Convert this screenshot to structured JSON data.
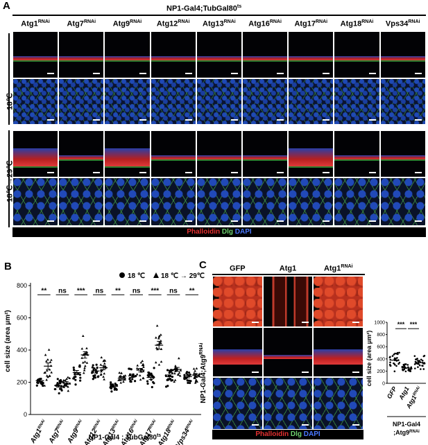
{
  "panelA": {
    "letter": "A",
    "genotype": "NP1-Gal4;TubGal80",
    "genotype_sup": "ts",
    "columns": [
      {
        "name": "Atg1",
        "sup": "RNAi"
      },
      {
        "name": "Atg7",
        "sup": "RNAi"
      },
      {
        "name": "Atg9",
        "sup": "RNAi"
      },
      {
        "name": "Atg12",
        "sup": "RNAi"
      },
      {
        "name": "Atg13",
        "sup": "RNAi"
      },
      {
        "name": "Atg16",
        "sup": "RNAi"
      },
      {
        "name": "Atg17",
        "sup": "RNAi"
      },
      {
        "name": "Atg18",
        "sup": "RNAi"
      },
      {
        "name": "Vps34",
        "sup": "RNAi"
      }
    ],
    "row_label_1": "18℃",
    "row_label_2": "18℃→29℃",
    "stain_labels": {
      "phalloidin": "Phalloidin",
      "dlg": "Dlg",
      "dapi": "DAPI"
    }
  },
  "panelB": {
    "letter": "B",
    "legend_circle": "18 ℃",
    "legend_triangle": "18 ℃ → 29℃",
    "xlabel": "NP1-Gal4 ; TubGal80",
    "xlabel_sup": "ts",
    "ylabel": "cell size (area μm²)",
    "significance": [
      "**",
      "ns",
      "***",
      "ns",
      "**",
      "ns",
      "***",
      "ns",
      "**"
    ]
  },
  "panelC": {
    "letter": "C",
    "columns": [
      "GFP",
      "Atg1",
      "Atg1"
    ],
    "column_sups": [
      "",
      "",
      "RNAi"
    ],
    "side_label": "NP1-Gal4;Atg9",
    "side_label_sup": "RNAi",
    "stain_labels": {
      "phalloidin": "Phalloidin",
      "dlg": "Dlg",
      "dapi": "DAPI"
    },
    "bottom_label_1": "NP1-Gal4",
    "bottom_label_2": ";Atg9",
    "bottom_label_2_sup": "RNAi",
    "inset_ylabel": "cell size (area μm²)",
    "inset_significance": [
      "***",
      "***"
    ]
  },
  "chart_data": [
    {
      "type": "scatter",
      "title": "",
      "xlabel": "NP1-Gal4 ; TubGal80ts",
      "ylabel": "cell size (area μm²)",
      "ylim": [
        0,
        800
      ],
      "yticks": [
        0,
        200,
        400,
        600,
        800
      ],
      "categories": [
        "Atg1RNAi",
        "Atg7RNAi",
        "Atg9RNAi",
        "Atg12RNAi",
        "Atg13RNAi",
        "Atg16RNAi",
        "Atg17RNAi",
        "Atg18RNAi",
        "Vps34RNAi"
      ],
      "series": [
        {
          "name": "18 ℃",
          "marker": "circle",
          "means": [
            210,
            180,
            260,
            270,
            175,
            240,
            230,
            235,
            235
          ],
          "spread": [
            40,
            45,
            60,
            55,
            30,
            45,
            55,
            50,
            35
          ]
        },
        {
          "name": "18 ℃ → 29℃",
          "marker": "triangle",
          "means": [
            300,
            195,
            370,
            290,
            225,
            275,
            430,
            280,
            245
          ],
          "spread": [
            90,
            40,
            90,
            55,
            45,
            50,
            110,
            55,
            40
          ]
        }
      ],
      "significance": [
        "**",
        "ns",
        "***",
        "ns",
        "**",
        "ns",
        "***",
        "ns",
        "**"
      ]
    },
    {
      "type": "scatter",
      "xlabel": "NP1-Gal4 ;Atg9RNAi",
      "ylabel": "cell size (area μm²)",
      "ylim": [
        0,
        1000
      ],
      "yticks": [
        0,
        200,
        400,
        600,
        800,
        1000
      ],
      "categories": [
        "GFP",
        "Atg1",
        "Atg1RNAi"
      ],
      "means": [
        380,
        250,
        340
      ],
      "spread": [
        130,
        60,
        90
      ],
      "significance": [
        "***",
        "***"
      ]
    }
  ]
}
